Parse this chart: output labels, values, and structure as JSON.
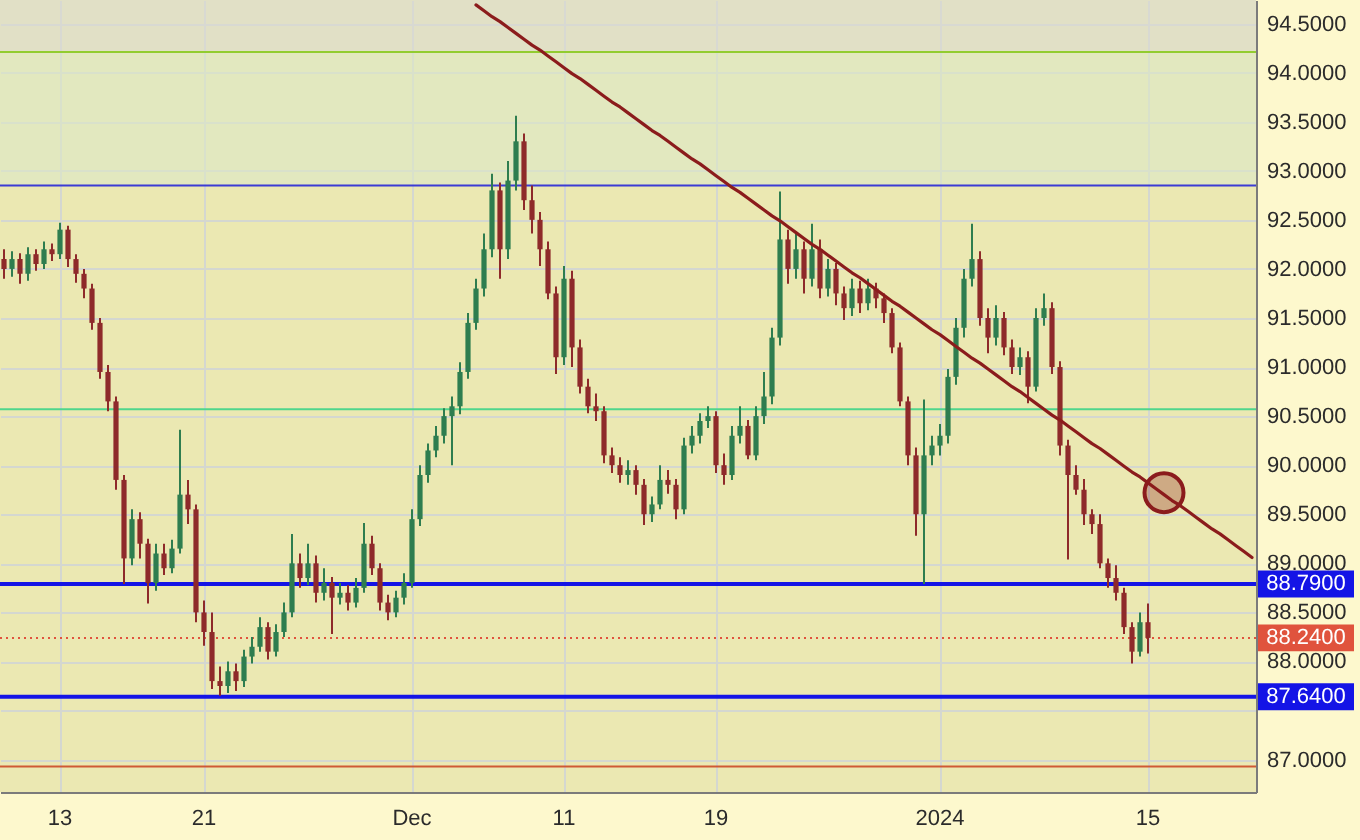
{
  "chart_data": {
    "type": "candlestick",
    "categories": [
      null,
      null,
      null,
      null,
      null,
      null,
      null,
      "13",
      null,
      null,
      null,
      null,
      null,
      null,
      null,
      null,
      null,
      null,
      null,
      null,
      null,
      null,
      null,
      null,
      null,
      "21",
      null,
      null,
      null,
      null,
      null,
      null,
      null,
      null,
      null,
      null,
      null,
      null,
      null,
      null,
      null,
      null,
      null,
      null,
      null,
      null,
      null,
      null,
      null,
      null,
      null,
      "Dec",
      null,
      null,
      null,
      null,
      null,
      null,
      null,
      null,
      null,
      null,
      null,
      null,
      null,
      null,
      null,
      null,
      null,
      null,
      "11",
      null,
      null,
      null,
      null,
      null,
      null,
      null,
      null,
      null,
      null,
      null,
      null,
      null,
      null,
      null,
      null,
      null,
      null,
      "19",
      null,
      null,
      null,
      null,
      null,
      null,
      null,
      null,
      null,
      null,
      null,
      null,
      null,
      null,
      null,
      null,
      null,
      null,
      null,
      null,
      null,
      null,
      null,
      null,
      null,
      null,
      null,
      "2024",
      null,
      null,
      null,
      null,
      null,
      null,
      null,
      null,
      null,
      null,
      null,
      null,
      null,
      null,
      null,
      null,
      null,
      null,
      null,
      null,
      null,
      null,
      null,
      null,
      null,
      "15",
      null,
      null,
      null,
      null,
      null,
      null,
      null,
      null,
      null,
      null,
      null,
      null,
      null
    ],
    "ohlc": [
      [
        92.1,
        92.2,
        91.9,
        92.0
      ],
      [
        92.0,
        92.18,
        91.92,
        92.1
      ],
      [
        92.1,
        92.16,
        91.85,
        91.95
      ],
      [
        91.95,
        92.22,
        91.88,
        92.15
      ],
      [
        92.15,
        92.2,
        91.98,
        92.05
      ],
      [
        92.05,
        92.28,
        92.0,
        92.2
      ],
      [
        92.2,
        92.26,
        92.08,
        92.15
      ],
      [
        92.15,
        92.47,
        92.1,
        92.4
      ],
      [
        92.4,
        92.44,
        92.02,
        92.1
      ],
      [
        92.1,
        92.15,
        91.86,
        91.95
      ],
      [
        91.95,
        92.0,
        91.7,
        91.8
      ],
      [
        91.8,
        91.85,
        91.38,
        91.45
      ],
      [
        91.45,
        91.5,
        90.88,
        90.95
      ],
      [
        90.95,
        91.02,
        90.55,
        90.65
      ],
      [
        90.65,
        90.7,
        89.75,
        89.85
      ],
      [
        89.85,
        89.9,
        88.79,
        89.05
      ],
      [
        89.05,
        89.55,
        88.98,
        89.45
      ],
      [
        89.45,
        89.52,
        89.05,
        89.2
      ],
      [
        89.2,
        89.25,
        88.59,
        88.8
      ],
      [
        88.8,
        89.2,
        88.72,
        89.1
      ],
      [
        89.1,
        89.2,
        88.88,
        88.95
      ],
      [
        88.95,
        89.24,
        88.9,
        89.15
      ],
      [
        89.15,
        90.36,
        89.1,
        89.7
      ],
      [
        89.7,
        89.85,
        89.4,
        89.55
      ],
      [
        89.55,
        89.6,
        88.4,
        88.5
      ],
      [
        88.5,
        88.62,
        88.16,
        88.3
      ],
      [
        88.3,
        88.5,
        87.72,
        87.8
      ],
      [
        87.8,
        87.95,
        87.65,
        87.75
      ],
      [
        87.75,
        88.0,
        87.68,
        87.9
      ],
      [
        87.9,
        87.98,
        87.7,
        87.8
      ],
      [
        87.8,
        88.12,
        87.74,
        88.05
      ],
      [
        88.05,
        88.25,
        87.98,
        88.15
      ],
      [
        88.15,
        88.45,
        88.1,
        88.35
      ],
      [
        88.35,
        88.4,
        88.02,
        88.1
      ],
      [
        88.1,
        88.38,
        88.05,
        88.3
      ],
      [
        88.3,
        88.6,
        88.25,
        88.5
      ],
      [
        88.5,
        89.3,
        88.45,
        89.0
      ],
      [
        89.0,
        89.1,
        88.75,
        88.85
      ],
      [
        88.85,
        89.2,
        88.78,
        89.0
      ],
      [
        89.0,
        89.08,
        88.6,
        88.7
      ],
      [
        88.7,
        88.95,
        88.62,
        88.8
      ],
      [
        88.8,
        88.86,
        88.28,
        88.65
      ],
      [
        88.65,
        88.8,
        88.58,
        88.7
      ],
      [
        88.7,
        88.78,
        88.52,
        88.6
      ],
      [
        88.6,
        88.85,
        88.55,
        88.75
      ],
      [
        88.75,
        89.41,
        88.7,
        89.2
      ],
      [
        89.2,
        89.28,
        88.88,
        88.95
      ],
      [
        88.95,
        89.0,
        88.52,
        88.6
      ],
      [
        88.6,
        88.68,
        88.42,
        88.5
      ],
      [
        88.5,
        88.72,
        88.45,
        88.65
      ],
      [
        88.65,
        88.9,
        88.58,
        88.8
      ],
      [
        88.8,
        89.55,
        88.75,
        89.45
      ],
      [
        89.45,
        90.0,
        89.38,
        89.9
      ],
      [
        89.9,
        90.22,
        89.82,
        90.15
      ],
      [
        90.15,
        90.4,
        90.08,
        90.3
      ],
      [
        90.3,
        90.58,
        90.22,
        90.5
      ],
      [
        90.5,
        90.7,
        90.0,
        90.6
      ],
      [
        90.6,
        91.05,
        90.52,
        90.95
      ],
      [
        90.95,
        91.55,
        90.88,
        91.45
      ],
      [
        91.45,
        91.9,
        91.38,
        91.8
      ],
      [
        91.8,
        92.36,
        91.72,
        92.2
      ],
      [
        92.2,
        92.97,
        92.12,
        92.8
      ],
      [
        92.8,
        92.88,
        91.9,
        92.2
      ],
      [
        92.2,
        93.1,
        92.1,
        92.9
      ],
      [
        92.9,
        93.56,
        92.8,
        93.3
      ],
      [
        93.3,
        93.38,
        92.6,
        92.7
      ],
      [
        92.7,
        92.85,
        92.36,
        92.5
      ],
      [
        92.5,
        92.58,
        92.03,
        92.2
      ],
      [
        92.2,
        92.28,
        91.69,
        91.75
      ],
      [
        91.75,
        91.82,
        90.93,
        91.1
      ],
      [
        91.1,
        92.03,
        91.02,
        91.9
      ],
      [
        91.9,
        91.98,
        91.0,
        91.2
      ],
      [
        91.2,
        91.28,
        90.73,
        90.8
      ],
      [
        90.8,
        90.88,
        90.53,
        90.6
      ],
      [
        90.6,
        90.73,
        90.45,
        90.55
      ],
      [
        90.55,
        90.6,
        90.02,
        90.1
      ],
      [
        90.1,
        90.18,
        89.92,
        90.0
      ],
      [
        90.0,
        90.08,
        89.82,
        89.9
      ],
      [
        89.9,
        90.05,
        89.8,
        89.95
      ],
      [
        89.95,
        90.0,
        89.7,
        89.8
      ],
      [
        89.8,
        89.86,
        89.39,
        89.5
      ],
      [
        89.5,
        89.68,
        89.42,
        89.6
      ],
      [
        89.6,
        90.0,
        89.55,
        89.85
      ],
      [
        89.85,
        89.95,
        89.71,
        89.8
      ],
      [
        89.8,
        89.86,
        89.45,
        89.55
      ],
      [
        89.55,
        90.28,
        89.5,
        90.2
      ],
      [
        90.2,
        90.4,
        90.12,
        90.3
      ],
      [
        90.3,
        90.53,
        90.22,
        90.45
      ],
      [
        90.45,
        90.6,
        90.38,
        90.5
      ],
      [
        90.5,
        90.55,
        89.92,
        90.0
      ],
      [
        90.0,
        90.12,
        89.8,
        89.9
      ],
      [
        89.9,
        90.4,
        89.85,
        90.3
      ],
      [
        90.3,
        90.6,
        90.22,
        90.4
      ],
      [
        90.4,
        90.46,
        90.06,
        90.1
      ],
      [
        90.1,
        90.6,
        90.05,
        90.5
      ],
      [
        90.5,
        90.95,
        90.42,
        90.7
      ],
      [
        90.7,
        91.4,
        90.62,
        91.3
      ],
      [
        91.3,
        92.79,
        91.22,
        92.3
      ],
      [
        92.3,
        92.4,
        91.85,
        92.0
      ],
      [
        92.0,
        92.36,
        91.9,
        92.2
      ],
      [
        92.2,
        92.28,
        91.75,
        91.9
      ],
      [
        91.9,
        92.46,
        91.82,
        92.2
      ],
      [
        92.2,
        92.3,
        91.7,
        91.8
      ],
      [
        91.8,
        92.1,
        91.72,
        92.0
      ],
      [
        92.0,
        92.06,
        91.63,
        91.75
      ],
      [
        91.75,
        91.82,
        91.48,
        91.6
      ],
      [
        91.6,
        91.9,
        91.52,
        91.8
      ],
      [
        91.8,
        91.88,
        91.55,
        91.65
      ],
      [
        91.65,
        91.9,
        91.58,
        91.8
      ],
      [
        91.8,
        91.86,
        91.6,
        91.7
      ],
      [
        91.7,
        91.75,
        91.45,
        91.55
      ],
      [
        91.55,
        91.6,
        91.14,
        91.2
      ],
      [
        91.2,
        91.25,
        90.6,
        90.65
      ],
      [
        90.65,
        90.7,
        90.0,
        90.1
      ],
      [
        90.1,
        90.18,
        89.28,
        89.5
      ],
      [
        89.5,
        90.67,
        88.79,
        90.1
      ],
      [
        90.1,
        90.3,
        90.0,
        90.2
      ],
      [
        90.2,
        90.42,
        90.1,
        90.3
      ],
      [
        90.3,
        90.98,
        90.22,
        90.9
      ],
      [
        90.9,
        91.5,
        90.82,
        91.4
      ],
      [
        91.4,
        92.0,
        91.3,
        91.9
      ],
      [
        91.9,
        92.46,
        91.82,
        92.1
      ],
      [
        92.1,
        92.18,
        91.42,
        91.5
      ],
      [
        91.5,
        91.6,
        91.14,
        91.3
      ],
      [
        91.3,
        91.63,
        91.22,
        91.5
      ],
      [
        91.5,
        91.56,
        91.12,
        91.2
      ],
      [
        91.2,
        91.28,
        90.93,
        91.0
      ],
      [
        91.0,
        91.2,
        90.92,
        91.1
      ],
      [
        91.1,
        91.16,
        90.63,
        90.8
      ],
      [
        90.8,
        91.6,
        90.75,
        91.5
      ],
      [
        91.5,
        91.75,
        91.42,
        91.6
      ],
      [
        91.6,
        91.66,
        90.93,
        91.0
      ],
      [
        91.0,
        91.06,
        90.1,
        90.2
      ],
      [
        90.2,
        90.26,
        89.04,
        89.9
      ],
      [
        89.9,
        90.0,
        89.7,
        89.75
      ],
      [
        89.75,
        89.86,
        89.39,
        89.5
      ],
      [
        89.5,
        89.55,
        89.3,
        89.4
      ],
      [
        89.4,
        89.5,
        88.95,
        89.0
      ],
      [
        89.0,
        89.05,
        88.75,
        88.85
      ],
      [
        88.85,
        88.98,
        88.62,
        88.7
      ],
      [
        88.7,
        88.75,
        88.28,
        88.35
      ],
      [
        88.35,
        88.4,
        87.98,
        88.1
      ],
      [
        88.1,
        88.5,
        88.05,
        88.4
      ],
      [
        88.4,
        88.59,
        88.08,
        88.24
      ],
      null,
      null,
      null,
      null,
      null,
      null,
      null,
      null,
      null,
      null,
      null,
      null,
      null
    ],
    "colors": [
      "#8e2a2a",
      "#2e7d4f",
      "#8e2a2a",
      "#2e7d4f",
      "#8e2a2a",
      "#2e7d4f",
      "#8e2a2a",
      "#2e7d4f",
      "#8e2a2a",
      "#8e2a2a",
      "#8e2a2a",
      "#8e2a2a",
      "#8e2a2a",
      "#8e2a2a",
      "#8e2a2a",
      "#8e2a2a",
      "#2e7d4f",
      "#8e2a2a",
      "#8e2a2a",
      "#2e7d4f",
      "#8e2a2a",
      "#2e7d4f",
      "#2e7d4f",
      "#8e2a2a",
      "#8e2a2a",
      "#8e2a2a",
      "#8e2a2a",
      "#8e2a2a",
      "#2e7d4f",
      "#8e2a2a",
      "#2e7d4f",
      "#2e7d4f",
      "#2e7d4f",
      "#8e2a2a",
      "#2e7d4f",
      "#2e7d4f",
      "#2e7d4f",
      "#8e2a2a",
      "#2e7d4f",
      "#8e2a2a",
      "#2e7d4f",
      "#8e2a2a",
      "#2e7d4f",
      "#8e2a2a",
      "#2e7d4f",
      "#2e7d4f",
      "#8e2a2a",
      "#8e2a2a",
      "#8e2a2a",
      "#2e7d4f",
      "#2e7d4f",
      "#2e7d4f",
      "#2e7d4f",
      "#2e7d4f",
      "#2e7d4f",
      "#2e7d4f",
      "#2e7d4f",
      "#2e7d4f",
      "#2e7d4f",
      "#2e7d4f",
      "#2e7d4f",
      "#2e7d4f",
      "#8e2a2a",
      "#2e7d4f",
      "#2e7d4f",
      "#8e2a2a",
      "#8e2a2a",
      "#8e2a2a",
      "#8e2a2a",
      "#8e2a2a",
      "#2e7d4f",
      "#8e2a2a",
      "#8e2a2a",
      "#8e2a2a",
      "#8e2a2a",
      "#8e2a2a",
      "#8e2a2a",
      "#8e2a2a",
      "#2e7d4f",
      "#8e2a2a",
      "#8e2a2a",
      "#2e7d4f",
      "#2e7d4f",
      "#8e2a2a",
      "#8e2a2a",
      "#2e7d4f",
      "#2e7d4f",
      "#2e7d4f",
      "#2e7d4f",
      "#8e2a2a",
      "#8e2a2a",
      "#2e7d4f",
      "#2e7d4f",
      "#8e2a2a",
      "#2e7d4f",
      "#2e7d4f",
      "#2e7d4f",
      "#2e7d4f",
      "#8e2a2a",
      "#2e7d4f",
      "#8e2a2a",
      "#2e7d4f",
      "#8e2a2a",
      "#2e7d4f",
      "#8e2a2a",
      "#8e2a2a",
      "#2e7d4f",
      "#8e2a2a",
      "#2e7d4f",
      "#8e2a2a",
      "#8e2a2a",
      "#8e2a2a",
      "#8e2a2a",
      "#8e2a2a",
      "#8e2a2a",
      "#2e7d4f",
      "#2e7d4f",
      "#2e7d4f",
      "#2e7d4f",
      "#2e7d4f",
      "#2e7d4f",
      "#2e7d4f",
      "#8e2a2a",
      "#8e2a2a",
      "#2e7d4f",
      "#8e2a2a",
      "#8e2a2a",
      "#2e7d4f",
      "#8e2a2a",
      "#2e7d4f",
      "#2e7d4f",
      "#8e2a2a",
      "#8e2a2a",
      "#8e2a2a",
      "#8e2a2a",
      "#8e2a2a",
      "#8e2a2a",
      "#8e2a2a",
      "#8e2a2a",
      "#8e2a2a",
      "#8e2a2a",
      "#8e2a2a",
      "#2e7d4f",
      "#8e2a2a",
      null,
      null,
      null,
      null,
      null,
      null,
      null,
      null,
      null,
      null,
      null,
      null,
      null
    ],
    "series": [
      {
        "type": "line",
        "color": "#8b1c1c",
        "values": [
          null,
          null,
          null,
          null,
          null,
          null,
          null,
          null,
          null,
          null,
          null,
          null,
          null,
          null,
          null,
          null,
          null,
          null,
          null,
          null,
          null,
          null,
          null,
          null,
          null,
          null,
          null,
          null,
          null,
          null,
          null,
          null,
          null,
          null,
          null,
          null,
          null,
          null,
          null,
          null,
          null,
          null,
          null,
          null,
          null,
          null,
          null,
          null,
          null,
          null,
          null,
          null,
          null,
          null,
          null,
          null,
          null,
          null,
          null,
          94.69,
          94.63,
          94.57,
          94.52,
          94.46,
          94.4,
          94.34,
          94.28,
          94.23,
          94.17,
          94.11,
          94.05,
          93.99,
          93.94,
          93.88,
          93.82,
          93.76,
          93.7,
          93.65,
          93.59,
          93.53,
          93.47,
          93.41,
          93.36,
          93.3,
          93.24,
          93.18,
          93.12,
          93.07,
          93.01,
          92.95,
          92.89,
          92.83,
          92.78,
          92.72,
          92.66,
          92.6,
          92.54,
          92.49,
          92.43,
          92.37,
          92.31,
          92.25,
          92.2,
          92.14,
          92.08,
          92.02,
          91.96,
          91.91,
          91.85,
          91.79,
          91.73,
          91.67,
          91.62,
          91.56,
          91.5,
          91.44,
          91.38,
          91.33,
          91.27,
          91.21,
          91.15,
          91.09,
          91.04,
          90.98,
          90.92,
          90.86,
          90.8,
          90.75,
          90.69,
          90.63,
          90.57,
          90.51,
          90.46,
          90.4,
          90.34,
          90.28,
          90.22,
          90.17,
          90.11,
          90.05,
          89.99,
          89.93,
          89.88,
          89.82,
          89.76,
          89.7,
          89.64,
          89.59,
          89.53,
          89.47,
          89.41,
          89.35,
          89.3,
          89.24,
          89.18,
          89.12,
          89.06
        ]
      },
      {
        "type": "scatter",
        "color": "#8b1c1c",
        "marker": "circle",
        "values": [
          null,
          null,
          null,
          null,
          null,
          null,
          null,
          null,
          null,
          null,
          null,
          null,
          null,
          null,
          null,
          null,
          null,
          null,
          null,
          null,
          null,
          null,
          null,
          null,
          null,
          null,
          null,
          null,
          null,
          null,
          null,
          null,
          null,
          null,
          null,
          null,
          null,
          null,
          null,
          null,
          null,
          null,
          null,
          null,
          null,
          null,
          null,
          null,
          null,
          null,
          null,
          null,
          null,
          null,
          null,
          null,
          null,
          null,
          null,
          null,
          null,
          null,
          null,
          null,
          null,
          null,
          null,
          null,
          null,
          null,
          null,
          null,
          null,
          null,
          null,
          null,
          null,
          null,
          null,
          null,
          null,
          null,
          null,
          null,
          null,
          null,
          null,
          null,
          null,
          null,
          null,
          null,
          null,
          null,
          null,
          null,
          null,
          null,
          null,
          null,
          null,
          null,
          null,
          null,
          null,
          null,
          null,
          null,
          null,
          null,
          null,
          null,
          null,
          null,
          null,
          null,
          null,
          null,
          null,
          null,
          null,
          null,
          null,
          null,
          null,
          null,
          null,
          null,
          null,
          null,
          null,
          null,
          null,
          null,
          null,
          null,
          null,
          null,
          null,
          null,
          null,
          null,
          null,
          null,
          null,
          89.72,
          null,
          null,
          null,
          null,
          null,
          null,
          null,
          null,
          null,
          null,
          null
        ]
      }
    ],
    "ylim": [
      86.67,
      94.74
    ],
    "yticks": [
      {
        "value": 87,
        "label": "87.0000"
      },
      {
        "value": 87.5,
        "label": null
      },
      {
        "value": 88,
        "label": "88.0000"
      },
      {
        "value": 88.5,
        "label": "88.5000"
      },
      {
        "value": 89,
        "label": "89.0000"
      },
      {
        "value": 89.5,
        "label": "89.5000"
      },
      {
        "value": 90,
        "label": "90.0000"
      },
      {
        "value": 90.5,
        "label": "90.5000"
      },
      {
        "value": 91,
        "label": "91.0000"
      },
      {
        "value": 91.5,
        "label": "91.5000"
      },
      {
        "value": 92,
        "label": "92.0000"
      },
      {
        "value": 92.5,
        "label": "92.5000"
      },
      {
        "value": 93,
        "label": "93.0000"
      },
      {
        "value": 93.5,
        "label": "93.5000"
      },
      {
        "value": 94,
        "label": "94.0000"
      },
      {
        "value": 94.5,
        "label": "94.5000"
      }
    ],
    "grid": true,
    "bands": [
      {
        "axis": "y",
        "from": 92.85,
        "to": 94.21,
        "color": "#e2e8bf"
      },
      {
        "axis": "y",
        "from": 94.21,
        "to": 94.74,
        "color": "#e1e0c6"
      }
    ],
    "ref_lines": [
      {
        "axis": "y",
        "value": 94.21,
        "color": "#92cc30"
      },
      {
        "axis": "y",
        "value": 92.85,
        "color": "#3b3bd4"
      },
      {
        "axis": "y",
        "value": 90.57,
        "color": "#4fd68c"
      },
      {
        "axis": "y",
        "value": 88.79,
        "label": "88.7900",
        "color": "#1414e6"
      },
      {
        "axis": "y",
        "value": 88.24,
        "label": "88.2400",
        "color": "#e0533d",
        "line_style": "dotted"
      },
      {
        "axis": "y",
        "value": 87.64,
        "label": "87.6400",
        "color": "#1414e6"
      },
      {
        "axis": "y",
        "value": 86.93,
        "color": "#cf5a34"
      }
    ]
  }
}
